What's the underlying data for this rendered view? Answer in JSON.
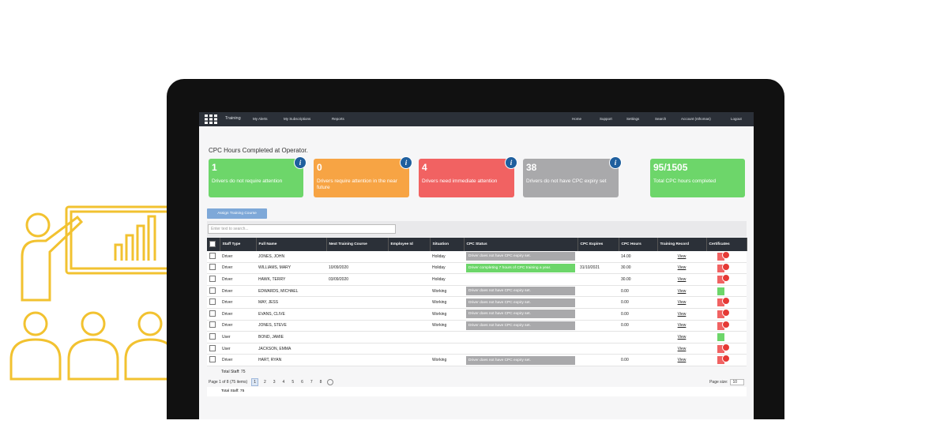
{
  "nav": {
    "brand": "Training",
    "left": [
      "My Alerts",
      "My Subscriptions",
      "Reports"
    ],
    "right": [
      "Home",
      "Support",
      "Settings",
      "Search",
      "Account (nthomas)",
      "Logout"
    ]
  },
  "page_title": "CPC Hours Completed at Operator.",
  "cards": [
    {
      "value": "1",
      "text": "Drivers do not require attention",
      "color": "#6dd66a",
      "info": true
    },
    {
      "value": "0",
      "text": "Drivers require attention in the near future",
      "color": "#f7a444",
      "info": true
    },
    {
      "value": "4",
      "text": "Drivers need immediate attention",
      "color": "#f16262",
      "info": true
    },
    {
      "value": "38",
      "text": "Drivers do not have CPC expiry set",
      "color": "#a9a9ab",
      "info": true
    },
    {
      "value": "95/1505",
      "text": "Total CPC hours completed",
      "color": "#6dd66a",
      "info": false
    }
  ],
  "assign_button": "Assign Training Course",
  "search_placeholder": "Enter text to search...",
  "table": {
    "columns": [
      "Staff Type",
      "Full Name",
      "Next Training Course",
      "Employee Id",
      "Situation",
      "CPC Status",
      "CPC Expires",
      "CPC Hours",
      "Training Record",
      "Certificates"
    ],
    "rows": [
      {
        "staff_type": "Driver",
        "full_name": "JONES, JOHN",
        "situation": "Holiday",
        "cpc_status": "Driver does not have CPC expiry set.",
        "status_color": "#a9a9ab",
        "cpc_hours": "14.00",
        "training_record": "View",
        "cert_color": "#f16262",
        "badge": true
      },
      {
        "staff_type": "Driver",
        "full_name": "WILLIAMS, MARY",
        "next_course": "10/09/2020",
        "situation": "Holiday",
        "cpc_status": "Driver completing 7 hours of CPC training a year.",
        "status_color": "#6dd66a",
        "cpc_expires": "31/10/2021",
        "cpc_hours": "30.00",
        "training_record": "View",
        "cert_color": "#f16262",
        "badge": true
      },
      {
        "staff_type": "Driver",
        "full_name": "HAWK, TERRY",
        "next_course": "03/09/2020",
        "situation": "Holiday",
        "cpc_hours": "30.00",
        "training_record": "View",
        "cert_color": "#f16262",
        "badge": true
      },
      {
        "staff_type": "Driver",
        "full_name": "EDWARDS, MICHAEL",
        "situation": "Working",
        "cpc_status": "Driver does not have CPC expiry set.",
        "status_color": "#a9a9ab",
        "cpc_hours": "0.00",
        "training_record": "View",
        "cert_color": "#6dd66a",
        "badge": false
      },
      {
        "staff_type": "Driver",
        "full_name": "MAY, JESS",
        "situation": "Working",
        "cpc_status": "Driver does not have CPC expiry set.",
        "status_color": "#a9a9ab",
        "cpc_hours": "0.00",
        "training_record": "View",
        "cert_color": "#f16262",
        "badge": true
      },
      {
        "staff_type": "Driver",
        "full_name": "EVANS, CLIVE",
        "situation": "Working",
        "cpc_status": "Driver does not have CPC expiry set.",
        "status_color": "#a9a9ab",
        "cpc_hours": "0.00",
        "training_record": "View",
        "cert_color": "#f16262",
        "badge": true
      },
      {
        "staff_type": "Driver",
        "full_name": "JONES, STEVE",
        "situation": "Working",
        "cpc_status": "Driver does not have CPC expiry set.",
        "status_color": "#a9a9ab",
        "cpc_hours": "0.00",
        "training_record": "View",
        "cert_color": "#f16262",
        "badge": true
      },
      {
        "staff_type": "User",
        "full_name": "BOND, JAMIE",
        "training_record": "View",
        "cert_color": "#6dd66a",
        "badge": false
      },
      {
        "staff_type": "User",
        "full_name": "JACKSON, EMMA",
        "training_record": "View",
        "cert_color": "#f16262",
        "badge": true
      },
      {
        "staff_type": "Driver",
        "full_name": "HART, RYAN",
        "situation": "Working",
        "cpc_status": "Driver does not have CPC expiry set.",
        "status_color": "#a9a9ab",
        "cpc_hours": "0.00",
        "training_record": "View",
        "cert_color": "#f16262",
        "badge": true
      }
    ],
    "total": "Total Staff: 75"
  },
  "pager": {
    "summary": "Page 1 of 8 (75 items)",
    "pages": [
      "1",
      "2",
      "3",
      "4",
      "5",
      "6",
      "7",
      "8"
    ],
    "current": 0,
    "size_label": "Page size:",
    "size": "10"
  },
  "footer_total": "Total Staff: 75"
}
